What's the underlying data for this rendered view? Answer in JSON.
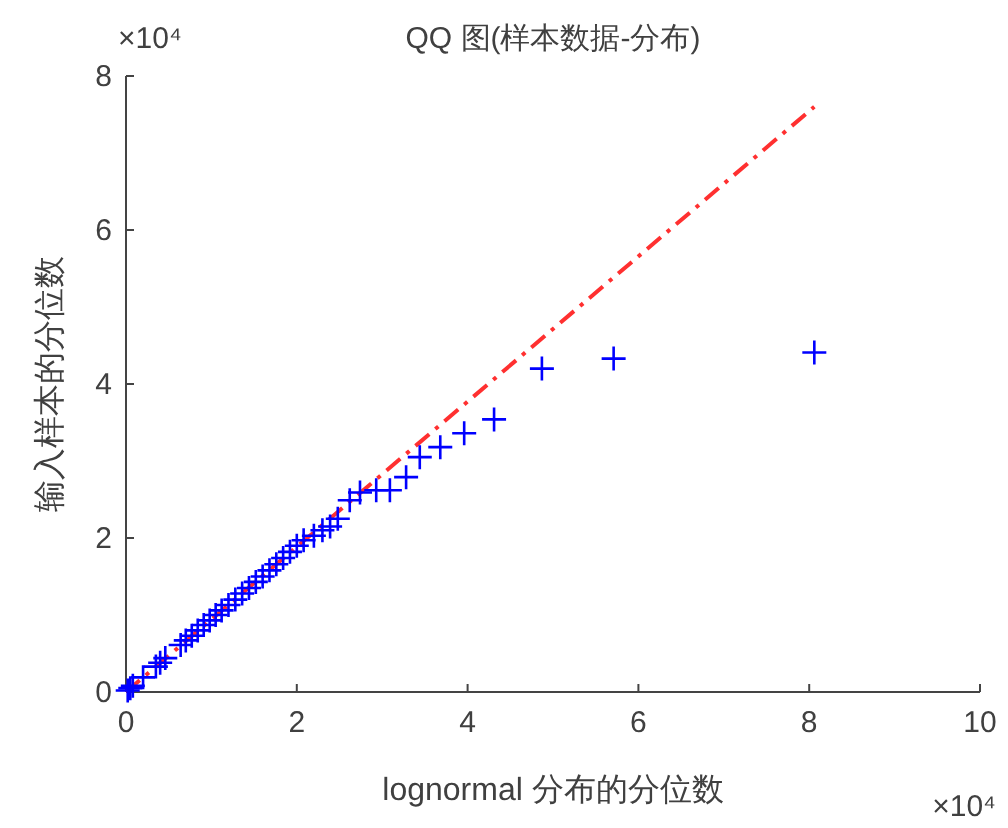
{
  "chart_data": {
    "type": "scatter",
    "title": "QQ 图(样本数据-分布)",
    "xlabel": "lognormal 分布的分位数",
    "ylabel": "输入样本的分位数",
    "annotations": [
      "×10⁴",
      "×10⁴"
    ],
    "xlim": [
      0,
      10
    ],
    "ylim": [
      0,
      8
    ],
    "xticks": [
      0,
      2,
      4,
      6,
      8,
      10
    ],
    "yticks": [
      0,
      2,
      4,
      6,
      8
    ],
    "grid": false,
    "series": [
      {
        "type": "line",
        "color": "#ff3030",
        "line_style": "dashed",
        "marker": "none",
        "x": [
          0,
          8.06
        ],
        "values": [
          0,
          7.6
        ]
      },
      {
        "type": "scatter",
        "color": "#0000ff",
        "marker": "cross",
        "x": [
          0.02,
          0.05,
          0.08,
          0.2,
          0.35,
          0.4,
          0.46,
          0.64,
          0.7,
          0.77,
          0.84,
          0.91,
          0.98,
          1.05,
          1.12,
          1.2,
          1.28,
          1.36,
          1.44,
          1.52,
          1.6,
          1.68,
          1.76,
          1.84,
          1.92,
          2.0,
          2.08,
          2.2,
          2.3,
          2.39,
          2.48,
          2.62,
          2.74,
          2.93,
          3.09,
          3.28,
          3.44,
          3.68,
          3.96,
          4.31,
          4.87,
          5.71,
          8.06
        ],
        "values": [
          0.02,
          0.05,
          0.08,
          0.19,
          0.33,
          0.38,
          0.44,
          0.61,
          0.67,
          0.73,
          0.8,
          0.87,
          0.93,
          1.0,
          1.06,
          1.13,
          1.2,
          1.28,
          1.35,
          1.43,
          1.5,
          1.58,
          1.66,
          1.74,
          1.82,
          1.9,
          1.97,
          2.03,
          2.1,
          2.15,
          2.25,
          2.49,
          2.59,
          2.62,
          2.62,
          2.79,
          3.05,
          3.18,
          3.36,
          3.54,
          4.2,
          4.33,
          4.41
        ]
      }
    ]
  }
}
